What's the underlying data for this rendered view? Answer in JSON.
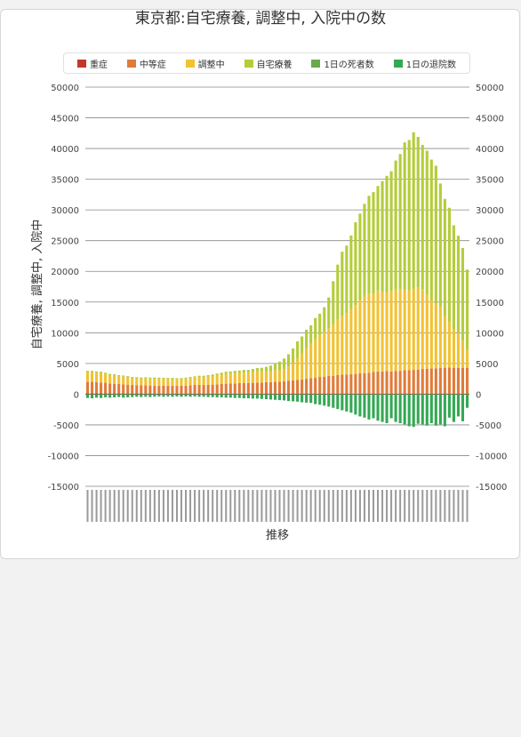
{
  "chart_data": {
    "type": "bar",
    "title": "東京都:自宅療養, 調整中, 入院中の数",
    "ylabel": "自宅療養, 調整中, 入院中",
    "xlabel": "推移",
    "ylim": [
      -15000,
      50000
    ],
    "yticks": [
      50000,
      45000,
      40000,
      35000,
      30000,
      25000,
      20000,
      15000,
      10000,
      5000,
      0,
      -5000,
      -10000,
      -15000
    ],
    "y_axis_right": true,
    "grid": true,
    "legend_position": "top",
    "stacked": true,
    "categories_count": 86,
    "series": [
      {
        "name": "重症",
        "color": "#c0392b",
        "values": [
          120,
          120,
          120,
          120,
          120,
          115,
          115,
          115,
          110,
          110,
          110,
          110,
          105,
          105,
          105,
          100,
          100,
          100,
          100,
          100,
          100,
          100,
          100,
          100,
          100,
          100,
          100,
          100,
          100,
          100,
          100,
          100,
          100,
          100,
          100,
          100,
          100,
          100,
          100,
          100,
          100,
          100,
          100,
          100,
          100,
          100,
          100,
          100,
          100,
          100,
          100,
          100,
          100,
          100,
          100,
          100,
          100,
          100,
          100,
          100,
          100,
          100,
          100,
          100,
          100,
          100,
          100,
          100,
          100,
          100,
          100,
          100,
          100,
          100,
          100,
          100,
          100,
          100,
          100,
          100,
          100,
          100,
          100,
          100,
          100,
          100
        ]
      },
      {
        "name": "中等症",
        "color": "#e07b39",
        "values": [
          1880,
          1880,
          1830,
          1780,
          1730,
          1630,
          1580,
          1530,
          1480,
          1430,
          1390,
          1350,
          1350,
          1350,
          1300,
          1250,
          1250,
          1260,
          1250,
          1250,
          1250,
          1280,
          1290,
          1350,
          1400,
          1400,
          1400,
          1400,
          1450,
          1500,
          1550,
          1600,
          1650,
          1650,
          1700,
          1700,
          1700,
          1750,
          1800,
          1800,
          1850,
          1850,
          1900,
          1950,
          2000,
          2100,
          2150,
          2200,
          2300,
          2400,
          2500,
          2600,
          2700,
          2750,
          2850,
          2900,
          3000,
          3100,
          3100,
          3150,
          3200,
          3300,
          3300,
          3400,
          3500,
          3600,
          3600,
          3650,
          3600,
          3650,
          3700,
          3800,
          3800,
          3850,
          3900,
          4000,
          4050,
          4100,
          4100,
          4200,
          4200,
          4250,
          4200,
          4200,
          4200,
          4200
        ]
      },
      {
        "name": "調整中",
        "color": "#f1c232",
        "values": [
          1600,
          1600,
          1550,
          1550,
          1450,
          1350,
          1350,
          1250,
          1250,
          1200,
          1100,
          1100,
          1050,
          1100,
          1100,
          1150,
          1150,
          1100,
          1100,
          1100,
          1050,
          1050,
          1100,
          1150,
          1200,
          1250,
          1250,
          1350,
          1400,
          1450,
          1550,
          1600,
          1600,
          1650,
          1650,
          1700,
          1700,
          1750,
          1800,
          1800,
          1800,
          1800,
          1850,
          1850,
          2000,
          2300,
          2800,
          3500,
          4200,
          5000,
          5600,
          6200,
          6800,
          7300,
          7800,
          8400,
          9000,
          9500,
          10000,
          10600,
          11200,
          12000,
          12600,
          12800,
          12800,
          13200,
          13000,
          12800,
          13100,
          13300,
          13300,
          13100,
          13000,
          13200,
          13400,
          13000,
          12000,
          11000,
          10500,
          10000,
          8500,
          7500,
          6200,
          5500,
          4500,
          3000
        ]
      },
      {
        "name": "自宅療養",
        "color": "#b5cc3a",
        "values": [
          200,
          200,
          200,
          200,
          200,
          200,
          200,
          200,
          200,
          200,
          200,
          200,
          200,
          200,
          200,
          200,
          200,
          200,
          200,
          200,
          200,
          200,
          200,
          200,
          200,
          250,
          250,
          250,
          250,
          300,
          300,
          350,
          350,
          400,
          400,
          450,
          450,
          500,
          550,
          600,
          700,
          900,
          1100,
          1400,
          1700,
          2000,
          2400,
          2800,
          2800,
          3000,
          3000,
          3500,
          3500,
          4000,
          5000,
          7000,
          9000,
          10500,
          11000,
          12000,
          13500,
          14000,
          15000,
          16000,
          16500,
          17000,
          18000,
          19000,
          19500,
          21000,
          22000,
          24000,
          24500,
          25500,
          24500,
          23500,
          23500,
          23000,
          22500,
          20000,
          19000,
          18500,
          17000,
          16000,
          15000,
          13000
        ]
      },
      {
        "name": "1日の死者数",
        "color": "#6aa84f",
        "values": [
          -20,
          -20,
          -20,
          -20,
          -20,
          -20,
          -20,
          -20,
          -20,
          -20,
          -20,
          -20,
          -20,
          -20,
          -20,
          -20,
          -20,
          -20,
          -20,
          -20,
          -20,
          -20,
          -20,
          -20,
          -20,
          -20,
          -20,
          -20,
          -20,
          -20,
          -20,
          -20,
          -20,
          -20,
          -20,
          -20,
          -20,
          -20,
          -20,
          -20,
          -20,
          -20,
          -20,
          -20,
          -20,
          -20,
          -20,
          -20,
          -20,
          -20,
          -20,
          -20,
          -20,
          -20,
          -20,
          -20,
          -20,
          -20,
          -20,
          -20,
          -20,
          -20,
          -20,
          -20,
          -20,
          -20,
          -20,
          -20,
          -20,
          -20,
          -20,
          -20,
          -20,
          -20,
          -20,
          -20,
          -20,
          -20,
          -20,
          -20,
          -20,
          -20,
          -20,
          -20,
          -20,
          -20
        ]
      },
      {
        "name": "1日の退院数",
        "color": "#34a853",
        "values": [
          -600,
          -650,
          -550,
          -600,
          -500,
          -550,
          -500,
          -450,
          -550,
          -500,
          -450,
          -400,
          -450,
          -400,
          -450,
          -400,
          -350,
          -400,
          -350,
          -400,
          -350,
          -400,
          -350,
          -400,
          -350,
          -400,
          -400,
          -450,
          -450,
          -500,
          -500,
          -550,
          -550,
          -600,
          -600,
          -650,
          -650,
          -700,
          -700,
          -750,
          -800,
          -850,
          -900,
          -950,
          -1000,
          -1100,
          -1150,
          -1200,
          -1300,
          -1350,
          -1400,
          -1600,
          -1700,
          -1850,
          -2000,
          -2200,
          -2400,
          -2600,
          -2800,
          -3000,
          -3300,
          -3600,
          -3800,
          -4100,
          -3900,
          -4300,
          -4500,
          -4700,
          -3900,
          -4500,
          -4700,
          -4900,
          -5200,
          -5300,
          -4800,
          -4900,
          -5100,
          -4700,
          -5100,
          -4900,
          -5200,
          -3800,
          -4500,
          -3600,
          -4400,
          -2200
        ]
      }
    ]
  }
}
